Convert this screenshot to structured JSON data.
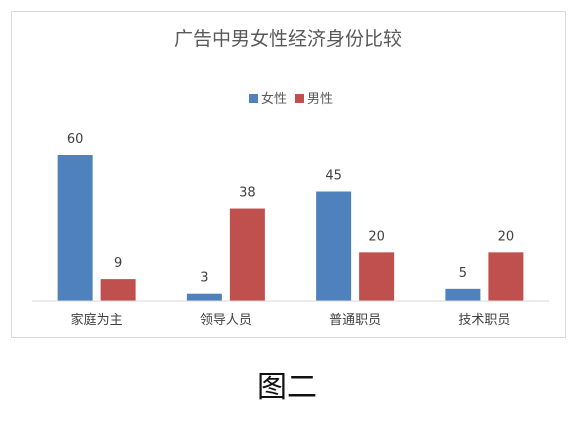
{
  "chart_data": {
    "type": "bar",
    "title": "广告中男女性经济身份比较",
    "categories": [
      "家庭为主",
      "领导人员",
      "普通职员",
      "技术职员"
    ],
    "series": [
      {
        "name": "女性",
        "color": "#4f81bd",
        "values": [
          60,
          3,
          45,
          5
        ]
      },
      {
        "name": "男性",
        "color": "#c0504d",
        "values": [
          9,
          38,
          20,
          20
        ]
      }
    ],
    "ylim": [
      0,
      60
    ],
    "grid": false,
    "legend": "top-center"
  },
  "caption": "图二"
}
